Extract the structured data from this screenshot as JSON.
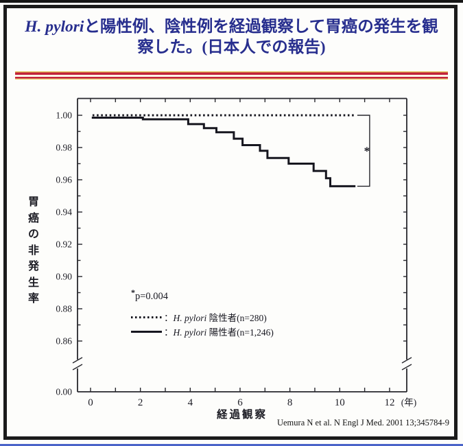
{
  "slide": {
    "title": {
      "italic": "H. pylori",
      "line1_rest": "と陽性例、陰性例を経過観察して胃癌の発生を観",
      "line2": "察した。(日本人での報告)"
    },
    "citation": "Uemura N et al. N Engl J Med. 2001 13;345784-9",
    "title_color": "#272e8e",
    "accent_color": "#c2223c",
    "line_color": "#16161f"
  },
  "legend": {
    "p_star": "*",
    "p_text": "p=0.004",
    "entries": [
      {
        "style": "dotted",
        "colon": "：",
        "italic": "H. pylori",
        "rest": " 陰性者(n=280)"
      },
      {
        "style": "solid",
        "colon": "：",
        "italic": "H. pylori",
        "rest": " 陽性者(n=1,246)"
      }
    ]
  },
  "chart_data": {
    "type": "line",
    "subtype": "kaplan-meier-step",
    "xlabel": "経過観察",
    "x_unit_label": "(年)",
    "ylabel": "胃癌の非発生率",
    "ylabel_chars": [
      "胃",
      "癌",
      "の",
      "非",
      "発",
      "生",
      "率"
    ],
    "xlim": [
      0,
      12.7
    ],
    "ylim_main": [
      0.855,
      1.003
    ],
    "y_axis_break_to_zero": true,
    "y_zero_label": "0.00",
    "x_ticks": [
      0,
      1,
      2,
      3,
      4,
      5,
      6,
      7,
      8,
      9,
      10,
      11,
      12
    ],
    "x_labeled": [
      0,
      2,
      4,
      6,
      8,
      10,
      12
    ],
    "x_tick_labels": [
      "0",
      "2",
      "4",
      "6",
      "8",
      "10",
      "12"
    ],
    "y_ticks": [
      0.86,
      0.87,
      0.88,
      0.89,
      0.9,
      0.91,
      0.92,
      0.93,
      0.94,
      0.95,
      0.96,
      0.97,
      0.98,
      0.99,
      1.0
    ],
    "y_labeled": [
      1.0,
      0.98,
      0.96,
      0.94,
      0.92,
      0.9,
      0.88,
      0.86
    ],
    "y_tick_labels": [
      "1.00",
      "0.98",
      "0.96",
      "0.94",
      "0.92",
      "0.90",
      "0.88",
      "0.86"
    ],
    "grid": false,
    "legend_position": "inside-lower-left",
    "series": [
      {
        "label": "H. pylori 陰性者(n=280)",
        "n": 280,
        "style": "dotted",
        "color": "#16161f",
        "steps": [
          [
            0.08,
            1.0
          ]
        ],
        "end_x": 10.63
      },
      {
        "label": "H. pylori 陽性者(n=1,246)",
        "n": 1246,
        "style": "solid",
        "color": "#16161f",
        "steps": [
          [
            0.05,
            0.9985
          ],
          [
            2.1,
            0.9975
          ],
          [
            3.92,
            0.9945
          ],
          [
            4.55,
            0.992
          ],
          [
            5.05,
            0.9895
          ],
          [
            5.75,
            0.9855
          ],
          [
            6.1,
            0.9815
          ],
          [
            6.8,
            0.978
          ],
          [
            7.1,
            0.9735
          ],
          [
            7.95,
            0.97
          ],
          [
            8.95,
            0.9655
          ],
          [
            9.45,
            0.961
          ],
          [
            9.62,
            0.956
          ]
        ],
        "end_x": 10.63
      }
    ],
    "significance": {
      "star": "*",
      "p_value": "p=0.004",
      "bracket_x_year": 11.2,
      "bracket_top_value": 1.0,
      "bracket_bottom_value": 0.956
    }
  }
}
